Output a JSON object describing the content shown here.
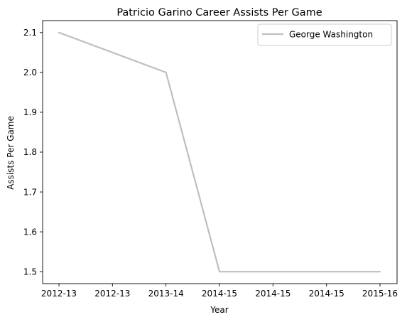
{
  "chart_data": {
    "type": "line",
    "title": "Patricio Garino Career Assists Per Game",
    "xlabel": "Year",
    "ylabel": "Assists Per Game",
    "x_tick_labels": [
      "2012-13",
      "2012-13",
      "2013-14",
      "2014-15",
      "2014-15",
      "2014-15",
      "2015-16"
    ],
    "y_tick_labels": [
      "1.5",
      "1.6",
      "1.7",
      "1.8",
      "1.9",
      "2.0",
      "2.1"
    ],
    "ylim": [
      1.47,
      2.13
    ],
    "grid": false,
    "legend_position": "upper right",
    "series": [
      {
        "name": "George Washington",
        "color": "#bfbfbf",
        "points": [
          {
            "x": "2012-13",
            "y": 2.1
          },
          {
            "x": "2013-14",
            "y": 2.0
          },
          {
            "x": "2014-15",
            "y": 1.5
          },
          {
            "x": "2015-16",
            "y": 1.5
          }
        ]
      }
    ]
  }
}
